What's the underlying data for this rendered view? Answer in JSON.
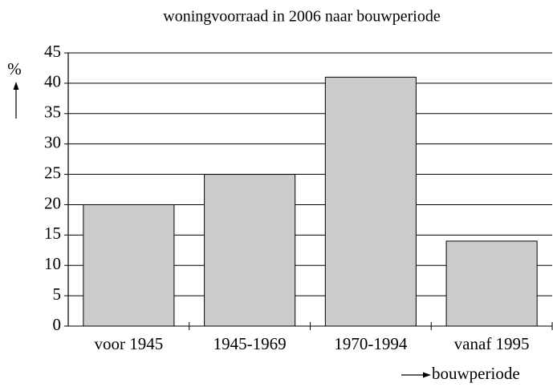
{
  "chart_data": {
    "type": "bar",
    "title": "woningvoorraad in 2006 naar bouwperiode",
    "y_label": "%",
    "x_label": "bouwperiode",
    "categories": [
      "voor 1945",
      "1945-1969",
      "1970-1994",
      "vanaf 1995"
    ],
    "values": [
      20,
      25,
      41,
      14
    ],
    "color": "#cccccc",
    "ylim": [
      0,
      45
    ],
    "yticks": [
      0,
      5,
      10,
      15,
      20,
      25,
      30,
      35,
      40,
      45
    ],
    "grid": true
  }
}
